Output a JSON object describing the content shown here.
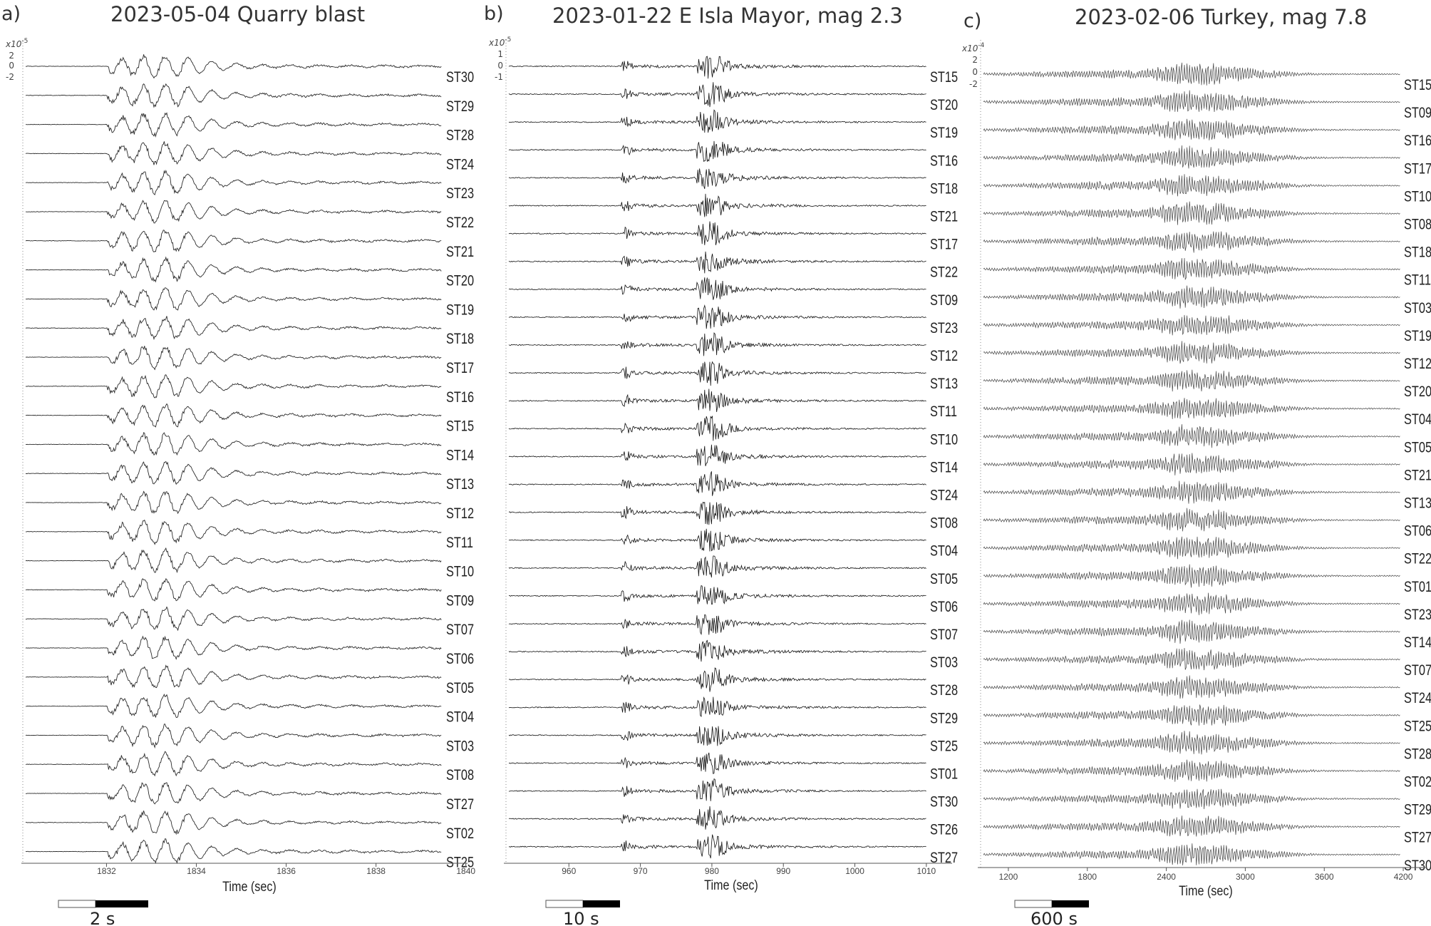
{
  "chart_data": [
    {
      "type": "line",
      "panel": "a)",
      "title": "2023-05-04 Quarry blast",
      "xlabel": "Time (sec)",
      "xlim": [
        1830.2,
        1840.1
      ],
      "x_ticks": [
        1832,
        1834,
        1836,
        1838,
        1840
      ],
      "y_exponent_mantissa": "x10",
      "y_exponent": "-5",
      "y_ticks": [
        "2",
        "0",
        "-2"
      ],
      "stations": [
        "ST30",
        "ST29",
        "ST28",
        "ST24",
        "ST23",
        "ST22",
        "ST21",
        "ST20",
        "ST19",
        "ST18",
        "ST17",
        "ST16",
        "ST15",
        "ST14",
        "ST13",
        "ST12",
        "ST11",
        "ST10",
        "ST09",
        "ST07",
        "ST06",
        "ST05",
        "ST04",
        "ST03",
        "ST08",
        "ST27",
        "ST02",
        "ST25"
      ],
      "scale_bar_label": "2 s",
      "color": "#2b2b2b"
    },
    {
      "type": "line",
      "panel": "b)",
      "title": "2023-01-22 E Isla Mayor, mag 2.3",
      "xlabel": "Time (sec)",
      "xlim": [
        951.5,
        1014
      ],
      "x_ticks": [
        960,
        970,
        980,
        990,
        1000,
        1010
      ],
      "y_exponent_mantissa": "x10",
      "y_exponent": "-5",
      "y_ticks": [
        "1",
        "0",
        "-1"
      ],
      "stations": [
        "ST15",
        "ST20",
        "ST19",
        "ST16",
        "ST18",
        "ST21",
        "ST17",
        "ST22",
        "ST09",
        "ST23",
        "ST12",
        "ST13",
        "ST11",
        "ST10",
        "ST14",
        "ST24",
        "ST08",
        "ST04",
        "ST05",
        "ST06",
        "ST07",
        "ST03",
        "ST28",
        "ST29",
        "ST25",
        "ST01",
        "ST30",
        "ST26",
        "ST27"
      ],
      "scale_bar_label": "10 s",
      "color": "#111111"
    },
    {
      "type": "line",
      "panel": "c)",
      "title": "2023-02-06 Turkey, mag 7.8",
      "xlabel": "Time (sec)",
      "xlim": [
        1000,
        4400
      ],
      "x_ticks": [
        1200,
        1800,
        2400,
        3000,
        3600,
        4200
      ],
      "y_exponent_mantissa": "x10",
      "y_exponent": "-4",
      "y_ticks": [
        "2",
        "0",
        "-2"
      ],
      "stations": [
        "ST15",
        "ST09",
        "ST16",
        "ST17",
        "ST10",
        "ST08",
        "ST18",
        "ST11",
        "ST03",
        "ST19",
        "ST12",
        "ST20",
        "ST04",
        "ST05",
        "ST21",
        "ST13",
        "ST06",
        "ST22",
        "ST01",
        "ST23",
        "ST14",
        "ST07",
        "ST24",
        "ST25",
        "ST28",
        "ST02",
        "ST29",
        "ST27",
        "ST30"
      ],
      "scale_bar_label": "600 s",
      "color": "#444444"
    }
  ]
}
